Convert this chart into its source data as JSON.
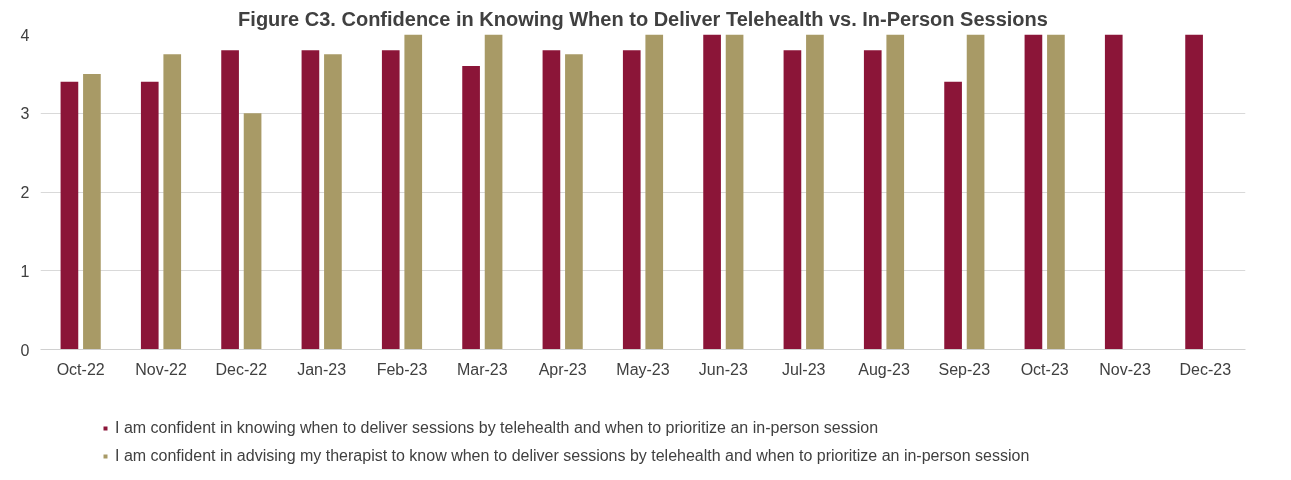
{
  "chart_data": {
    "type": "bar",
    "title": "Figure C3. Confidence in Knowing When to Deliver Telehealth vs. In-Person Sessions",
    "categories": [
      "Oct-22",
      "Nov-22",
      "Dec-22",
      "Jan-23",
      "Feb-23",
      "Mar-23",
      "Apr-23",
      "May-23",
      "Jun-23",
      "Jul-23",
      "Aug-23",
      "Sep-23",
      "Oct-23",
      "Nov-23",
      "Dec-23"
    ],
    "series": [
      {
        "name": "I am confident in knowing when to deliver sessions by telehealth and when to prioritize an in-person session",
        "color": "#8b1538",
        "values": [
          3.4,
          3.4,
          3.8,
          3.8,
          3.8,
          3.6,
          3.8,
          3.8,
          4,
          3.8,
          3.8,
          3.4,
          4,
          4,
          4
        ]
      },
      {
        "name": "I am confident in advising my therapist to know when to deliver sessions by telehealth and when to prioritize an in-person session",
        "color": "#a89a66",
        "values": [
          3.5,
          3.75,
          3.0,
          3.75,
          4,
          4,
          3.75,
          4,
          4,
          4,
          4,
          4,
          4,
          null,
          null
        ]
      }
    ],
    "ylim": [
      0,
      4
    ],
    "yticks": [
      0,
      1,
      2,
      3,
      4
    ],
    "grid": "y",
    "legend": "bottom"
  }
}
